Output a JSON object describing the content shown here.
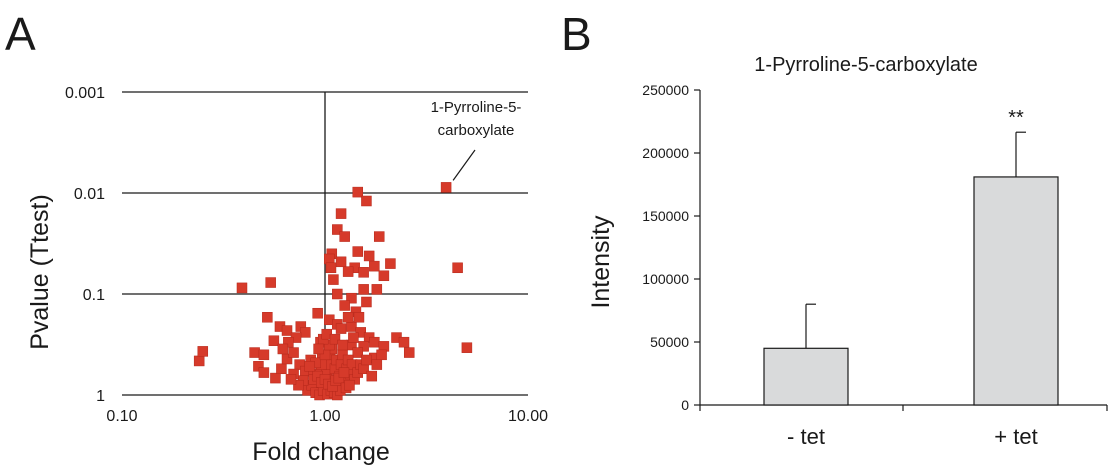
{
  "panels": {
    "a_letter": "A",
    "b_letter": "B"
  },
  "colors": {
    "point": "#d63a2a",
    "point_stroke": "#b5281b",
    "bar_fill": "#d9dadb",
    "axis": "#1a1a1a"
  },
  "chart_data": [
    {
      "type": "scatter",
      "title": "",
      "xlabel": "Fold change",
      "ylabel": "Pvalue (Ttest)",
      "x_scale": "log",
      "y_scale": "log-reversed",
      "xlim": [
        0.1,
        10
      ],
      "ylim": [
        1,
        0.001
      ],
      "x_ticks": [
        "0.10",
        "1.00",
        "10.00"
      ],
      "y_ticks": [
        "0.001",
        "0.01",
        "0.1",
        "1"
      ],
      "grid": "horizontal lines at 0.001, 0.01, 0.1; vertical line at 1.00",
      "annotation": {
        "line1": "1-Pyrroline-5-",
        "line2": "carboxylate",
        "x": 3.95,
        "y": 0.0088
      },
      "points": [
        [
          3.95,
          0.0088
        ],
        [
          4.5,
          0.055
        ],
        [
          5.0,
          0.34
        ],
        [
          0.24,
          0.46
        ],
        [
          0.25,
          0.37
        ],
        [
          0.39,
          0.087
        ],
        [
          0.54,
          0.077
        ],
        [
          1.45,
          0.0098
        ],
        [
          1.6,
          0.012
        ],
        [
          1.2,
          0.016
        ],
        [
          1.15,
          0.023
        ],
        [
          1.25,
          0.027
        ],
        [
          1.08,
          0.04
        ],
        [
          1.05,
          0.045
        ],
        [
          1.45,
          0.038
        ],
        [
          1.65,
          0.042
        ],
        [
          1.85,
          0.027
        ],
        [
          1.4,
          0.055
        ],
        [
          1.3,
          0.06
        ],
        [
          1.2,
          0.048
        ],
        [
          1.55,
          0.061
        ],
        [
          1.75,
          0.053
        ],
        [
          2.1,
          0.05
        ],
        [
          1.95,
          0.066
        ],
        [
          1.55,
          0.09
        ],
        [
          1.35,
          0.11
        ],
        [
          1.25,
          0.13
        ],
        [
          1.15,
          0.1
        ],
        [
          1.8,
          0.09
        ],
        [
          1.6,
          0.12
        ],
        [
          1.1,
          0.072
        ],
        [
          1.07,
          0.055
        ],
        [
          0.92,
          0.155
        ],
        [
          0.52,
          0.17
        ],
        [
          0.6,
          0.21
        ],
        [
          0.65,
          0.23
        ],
        [
          0.76,
          0.21
        ],
        [
          0.8,
          0.24
        ],
        [
          0.72,
          0.27
        ],
        [
          0.66,
          0.3
        ],
        [
          0.56,
          0.29
        ],
        [
          0.95,
          0.3
        ],
        [
          1.05,
          0.18
        ],
        [
          1.15,
          0.2
        ],
        [
          1.2,
          0.22
        ],
        [
          1.35,
          0.21
        ],
        [
          1.5,
          0.24
        ],
        [
          1.65,
          0.27
        ],
        [
          1.75,
          0.3
        ],
        [
          2.25,
          0.27
        ],
        [
          2.45,
          0.3
        ],
        [
          2.6,
          0.38
        ],
        [
          1.95,
          0.33
        ],
        [
          1.55,
          0.33
        ],
        [
          1.35,
          0.32
        ],
        [
          1.45,
          0.38
        ],
        [
          1.75,
          0.43
        ],
        [
          1.9,
          0.4
        ],
        [
          0.45,
          0.38
        ],
        [
          0.5,
          0.4
        ],
        [
          0.47,
          0.52
        ],
        [
          0.5,
          0.6
        ],
        [
          0.57,
          0.68
        ],
        [
          0.61,
          0.55
        ],
        [
          0.65,
          0.44
        ],
        [
          0.7,
          0.38
        ],
        [
          0.75,
          0.5
        ],
        [
          0.8,
          0.58
        ],
        [
          0.85,
          0.45
        ],
        [
          0.88,
          0.62
        ],
        [
          0.9,
          0.75
        ],
        [
          0.93,
          0.85
        ],
        [
          0.95,
          0.55
        ],
        [
          0.97,
          0.42
        ],
        [
          0.99,
          0.67
        ],
        [
          1.0,
          0.95
        ],
        [
          1.01,
          0.8
        ],
        [
          1.02,
          0.6
        ],
        [
          1.04,
          0.5
        ],
        [
          1.06,
          0.4
        ],
        [
          1.08,
          0.35
        ],
        [
          1.1,
          0.7
        ],
        [
          1.12,
          0.55
        ],
        [
          1.14,
          0.45
        ],
        [
          1.16,
          0.85
        ],
        [
          1.18,
          0.65
        ],
        [
          1.2,
          0.5
        ],
        [
          1.22,
          0.4
        ],
        [
          1.25,
          0.75
        ],
        [
          1.28,
          0.55
        ],
        [
          1.3,
          0.45
        ],
        [
          1.33,
          0.62
        ],
        [
          1.36,
          0.5
        ],
        [
          1.4,
          0.7
        ],
        [
          1.45,
          0.6
        ],
        [
          1.5,
          0.5
        ],
        [
          1.55,
          0.55
        ],
        [
          1.6,
          0.45
        ],
        [
          1.7,
          0.65
        ],
        [
          1.8,
          0.5
        ],
        [
          0.82,
          0.9
        ],
        [
          0.86,
          0.8
        ],
        [
          0.9,
          0.95
        ],
        [
          0.94,
          1.0
        ],
        [
          0.98,
          0.9
        ],
        [
          1.03,
          0.98
        ],
        [
          1.07,
          0.9
        ],
        [
          1.11,
          0.95
        ],
        [
          1.15,
          1.0
        ],
        [
          1.19,
          0.9
        ],
        [
          0.88,
          0.7
        ],
        [
          0.92,
          0.65
        ],
        [
          0.96,
          0.75
        ],
        [
          1.0,
          0.7
        ],
        [
          1.04,
          0.78
        ],
        [
          1.09,
          0.82
        ],
        [
          1.13,
          0.72
        ],
        [
          1.17,
          0.68
        ],
        [
          0.78,
          0.72
        ],
        [
          0.74,
          0.8
        ],
        [
          0.7,
          0.62
        ],
        [
          0.68,
          0.7
        ],
        [
          1.24,
          0.6
        ],
        [
          1.27,
          0.85
        ],
        [
          1.32,
          0.8
        ],
        [
          0.96,
          0.5
        ],
        [
          0.9,
          0.48
        ],
        [
          0.84,
          0.52
        ],
        [
          1.0,
          0.4
        ],
        [
          1.05,
          0.32
        ],
        [
          0.98,
          0.28
        ],
        [
          0.93,
          0.35
        ],
        [
          1.02,
          0.25
        ],
        [
          1.12,
          0.28
        ],
        [
          1.22,
          0.32
        ],
        [
          0.62,
          0.35
        ],
        [
          1.38,
          0.27
        ],
        [
          1.42,
          0.15
        ],
        [
          1.3,
          0.17
        ],
        [
          1.47,
          0.17
        ]
      ]
    },
    {
      "type": "bar",
      "title": "1-Pyrroline-5-carboxylate",
      "xlabel": "",
      "ylabel": "Intensity",
      "categories": [
        "- tet",
        "+ tet"
      ],
      "values": [
        45000,
        181000
      ],
      "errors": [
        35000,
        35500
      ],
      "significance": [
        "",
        "**"
      ],
      "ylim": [
        0,
        250000
      ],
      "y_ticks": [
        "0",
        "50000",
        "100000",
        "150000",
        "200000",
        "250000"
      ]
    }
  ]
}
